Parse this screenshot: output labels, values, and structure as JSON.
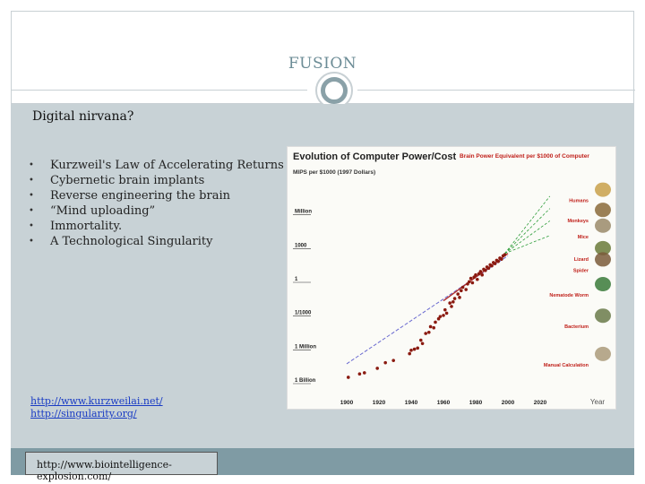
{
  "header": {
    "title": "FUSION"
  },
  "content": {
    "heading": "Digital nirvana?",
    "bullets": [
      "Kurzweil's Law of Accelerating Returns",
      "Cybernetic brain implants",
      "Reverse engineering the brain",
      "“Mind uploading”",
      "Immortality.",
      "A Technological Singularity"
    ],
    "links": [
      "http://www.kurzweilai.net/",
      "http://singularity.org/"
    ],
    "footer_url": "http://www.biointelligence-explosion.com/"
  },
  "chart_data": {
    "type": "scatter",
    "title": "Evolution of Computer Power/Cost",
    "ylabel": "MIPS per $1000 (1997 Dollars)",
    "xlabel": "Year",
    "right_title": "Brain Power Equivalent per $1000 of Computer",
    "x_ticks": [
      "1900",
      "1920",
      "1940",
      "1960",
      "1980",
      "2000",
      "2020"
    ],
    "y_ticks": [
      "Million",
      "1000",
      "1",
      "1/1000",
      "1 Million",
      "1 Billion"
    ],
    "right_labels": [
      "Humans",
      "Monkeys",
      "Mice",
      "Lizard",
      "Spider",
      "Nematode Worm",
      "Bacterium",
      "Manual Calculation"
    ],
    "colors": {
      "trend": "#6a6ad0",
      "points": "#8a1a10",
      "projection": "#2e9d3a",
      "title_red": "#c0201a"
    },
    "x_range": [
      1890,
      2030
    ],
    "y_log_range": [
      -9,
      9
    ]
  }
}
